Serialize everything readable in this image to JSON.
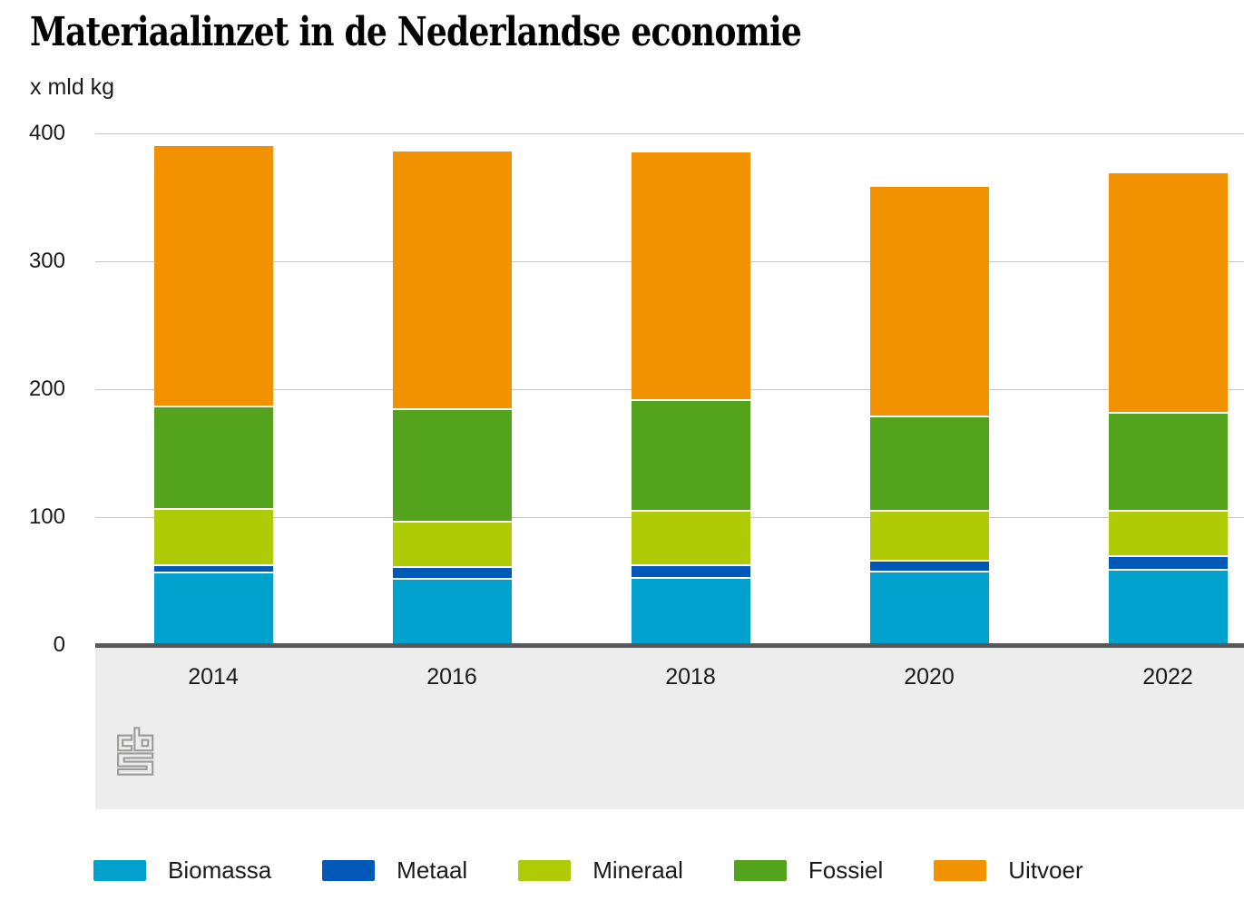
{
  "header": {
    "title": "Materiaalinzet in de Nederlandse economie",
    "unit_label": "x mld kg"
  },
  "chart_data": {
    "type": "bar",
    "stacked": true,
    "title": "Materiaalinzet in de Nederlandse economie",
    "ylabel": "x mld kg",
    "xlabel": "",
    "categories": [
      "2014",
      "2016",
      "2018",
      "2020",
      "2022"
    ],
    "series": [
      {
        "name": "Biomassa",
        "color": "#00a1cd",
        "values": [
          56,
          51,
          52,
          57,
          58
        ]
      },
      {
        "name": "Metaal",
        "color": "#0058b8",
        "values": [
          6,
          9,
          10,
          8,
          11
        ]
      },
      {
        "name": "Mineraal",
        "color": "#afcb05",
        "values": [
          44,
          36,
          42,
          39,
          35
        ]
      },
      {
        "name": "Fossiel",
        "color": "#53a31d",
        "values": [
          80,
          88,
          87,
          74,
          77
        ]
      },
      {
        "name": "Uitvoer",
        "color": "#f39200",
        "values": [
          204,
          202,
          194,
          180,
          188
        ]
      }
    ],
    "totals": [
      390,
      386,
      385,
      358,
      369
    ],
    "ylim": [
      0,
      400
    ],
    "yticks": [
      0,
      100,
      200,
      300,
      400
    ],
    "grid": true,
    "legend_position": "bottom",
    "source_logo": "cbs-logo",
    "colors": {
      "grid": "#c6c6c6",
      "axis": "#58585b",
      "band": "#ededed",
      "separator": "#ffffff",
      "logo_gray": "#9c9c9b"
    }
  }
}
